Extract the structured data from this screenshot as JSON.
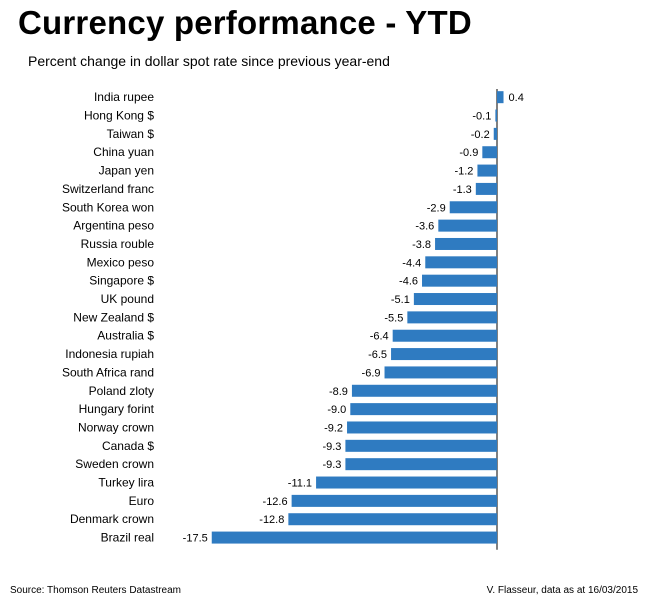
{
  "header": {
    "title": "Currency performance - YTD",
    "subtitle": "Percent change in dollar spot rate since previous year-end"
  },
  "footer": {
    "source": "Source: Thomson Reuters Datastream",
    "credit": "V. Flasseur, data as at 16/03/2015"
  },
  "colors": {
    "bar": "#2f7bc1"
  },
  "chart_data": {
    "type": "bar",
    "orientation": "horizontal",
    "title": "Currency performance - YTD",
    "subtitle": "Percent change in dollar spot rate since previous year-end",
    "xlabel": "",
    "ylabel": "",
    "xlim": [
      -17.5,
      0.4
    ],
    "grid": false,
    "categories": [
      "India rupee",
      "Hong Kong $",
      "Taiwan $",
      "China yuan",
      "Japan yen",
      "Switzerland franc",
      "South Korea won",
      "Argentina peso",
      "Russia rouble",
      "Mexico peso",
      "Singapore $",
      "UK pound",
      "New Zealand $",
      "Australia $",
      "Indonesia rupiah",
      "South Africa rand",
      "Poland zloty",
      "Hungary forint",
      "Norway crown",
      "Canada $",
      "Sweden crown",
      "Turkey lira",
      "Euro",
      "Denmark crown",
      "Brazil real"
    ],
    "values": [
      0.4,
      -0.1,
      -0.2,
      -0.9,
      -1.2,
      -1.3,
      -2.9,
      -3.6,
      -3.8,
      -4.4,
      -4.6,
      -5.1,
      -5.5,
      -6.4,
      -6.5,
      -6.9,
      -8.9,
      -9.0,
      -9.2,
      -9.3,
      -9.3,
      -11.1,
      -12.6,
      -12.8,
      -17.5
    ],
    "value_labels": [
      "0.4",
      "-0.1",
      "-0.2",
      "-0.9",
      "-1.2",
      "-1.3",
      "-2.9",
      "-3.6",
      "-3.8",
      "-4.4",
      "-4.6",
      "-5.1",
      "-5.5",
      "-6.4",
      "-6.5",
      "-6.9",
      "-8.9",
      "-9.0",
      "-9.2",
      "-9.3",
      "-9.3",
      "-11.1",
      "-12.6",
      "-12.8",
      "-17.5"
    ]
  }
}
